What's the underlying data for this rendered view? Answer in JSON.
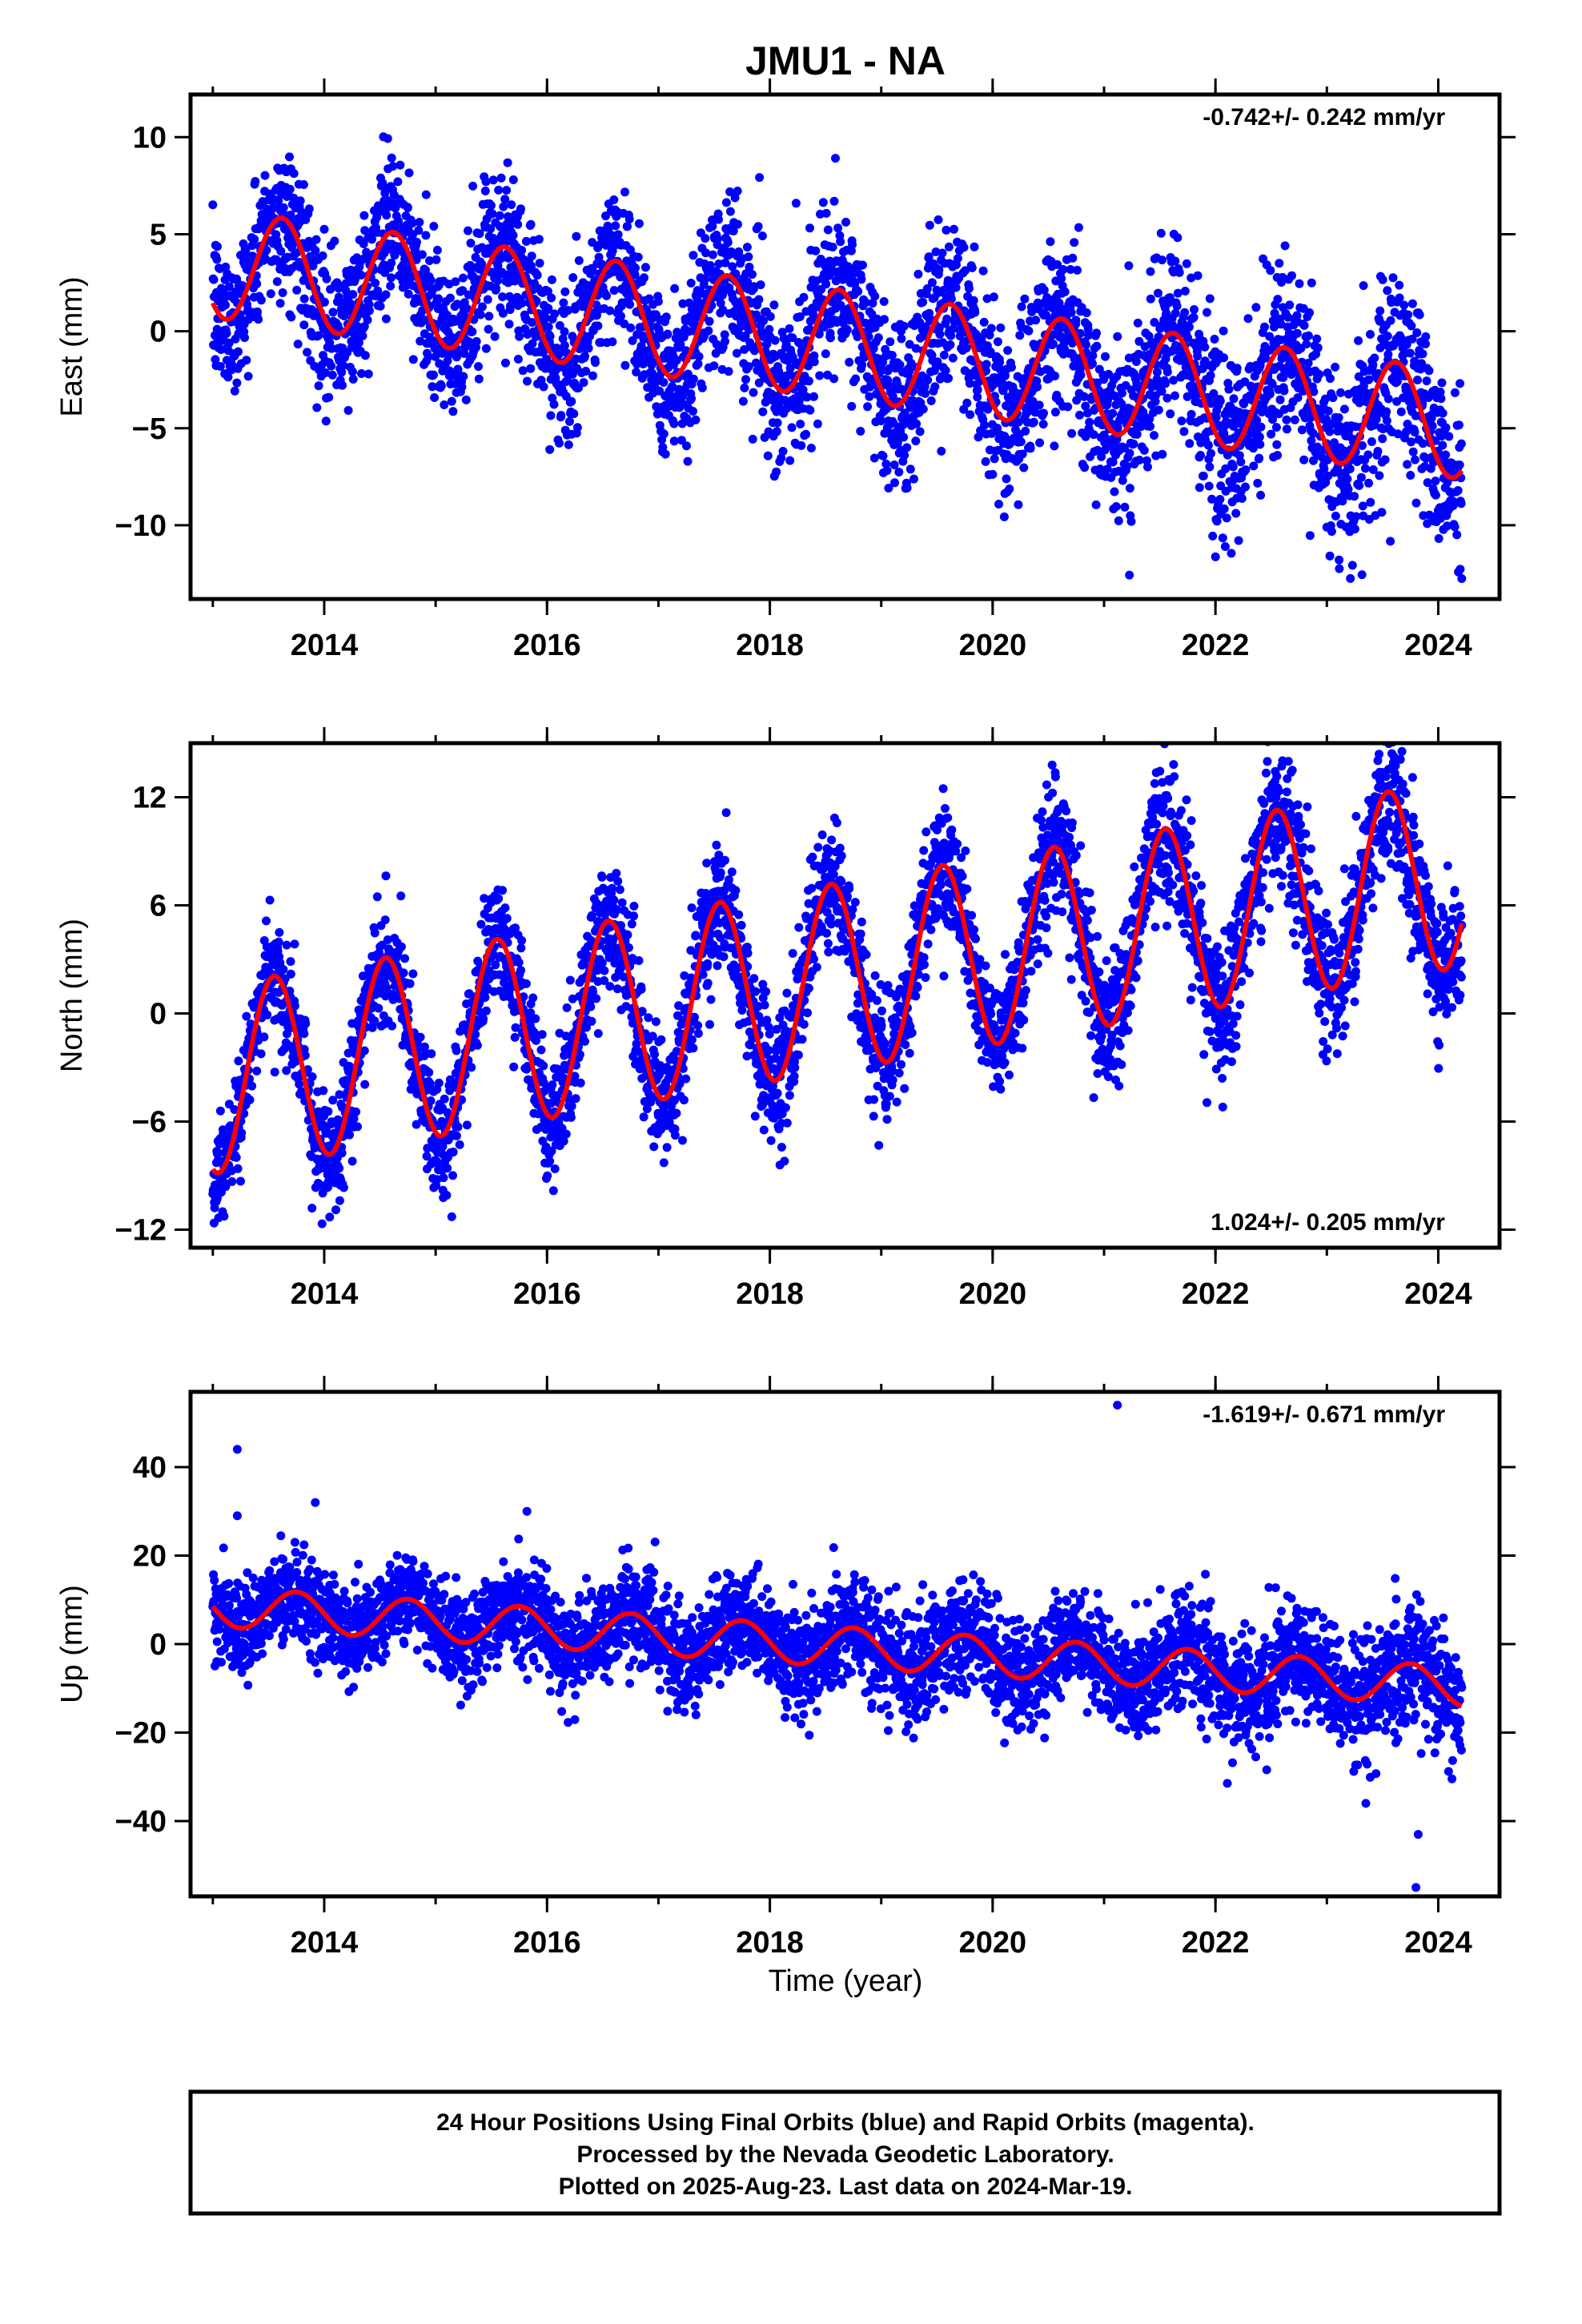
{
  "title": "JMU1 - NA",
  "xlabel": "Time (year)",
  "footer": [
    "24 Hour Positions Using Final Orbits (blue) and Rapid Orbits (magenta).",
    "Processed by the Nevada Geodetic Laboratory.",
    "Plotted on 2025-Aug-23. Last data on 2024-Mar-19."
  ],
  "colors": {
    "points": "#0000ff",
    "fit": "#ff0000",
    "axes": "#000000"
  },
  "chart_data": [
    {
      "type": "scatter",
      "ylabel": "East (mm)",
      "rate_text": "-0.742+/- 0.242 mm/yr",
      "rate_position": "top-right",
      "xlim": [
        2012.8,
        2024.55
      ],
      "ylim": [
        -13.8,
        12.2
      ],
      "xticks": [
        2014,
        2016,
        2018,
        2020,
        2022,
        2024
      ],
      "yticks": [
        10,
        5,
        0,
        -5,
        -10
      ],
      "series": [
        {
          "type": "scatter",
          "x_start": 2013.0,
          "x_end": 2024.21,
          "samples_per_year": 365
        },
        {
          "type": "line",
          "trend": {
            "intercept_at_2013": 3.5,
            "slope_per_year": -0.742
          },
          "annual": {
            "amplitude": 2.8,
            "peak_year_fraction": 0.62
          }
        }
      ],
      "noise_sigma": 1.8
    },
    {
      "type": "scatter",
      "ylabel": "North (mm)",
      "rate_text": "1.024+/- 0.205 mm/yr",
      "rate_position": "bottom-right",
      "xlim": [
        2012.8,
        2024.55
      ],
      "ylim": [
        -13.0,
        15.0
      ],
      "xticks": [
        2014,
        2016,
        2018,
        2020,
        2022,
        2024
      ],
      "yticks": [
        12,
        6,
        0,
        -6,
        -12
      ],
      "series": [
        {
          "type": "scatter",
          "x_start": 2013.0,
          "x_end": 2024.21,
          "samples_per_year": 365
        },
        {
          "type": "line",
          "trend": {
            "intercept_at_2013": -3.7,
            "slope_per_year": 1.024
          },
          "annual": {
            "amplitude": 5.2,
            "peak_year_fraction": 0.55
          }
        }
      ],
      "noise_sigma": 1.5
    },
    {
      "type": "scatter",
      "ylabel": "Up (mm)",
      "rate_text": "-1.619+/- 0.671 mm/yr",
      "rate_position": "top-right",
      "xlim": [
        2012.8,
        2024.55
      ],
      "ylim": [
        -57,
        57
      ],
      "xticks": [
        2014,
        2016,
        2018,
        2020,
        2022,
        2024
      ],
      "yticks": [
        40,
        20,
        0,
        -20,
        -40
      ],
      "series": [
        {
          "type": "scatter",
          "x_start": 2013.0,
          "x_end": 2024.21,
          "samples_per_year": 365
        },
        {
          "type": "line",
          "trend": {
            "intercept_at_2013": 8.5,
            "slope_per_year": -1.619
          },
          "annual": {
            "amplitude": 4.5,
            "peak_year_fraction": 0.75
          }
        }
      ],
      "noise_sigma": 5.0,
      "outliers": [
        {
          "x": 2013.22,
          "y": 44
        },
        {
          "x": 2013.22,
          "y": 29
        },
        {
          "x": 2013.92,
          "y": 32
        },
        {
          "x": 2015.82,
          "y": 30
        },
        {
          "x": 2021.12,
          "y": 54
        },
        {
          "x": 2023.82,
          "y": -43
        },
        {
          "x": 2023.8,
          "y": -55
        },
        {
          "x": 2023.35,
          "y": -36
        }
      ]
    }
  ]
}
